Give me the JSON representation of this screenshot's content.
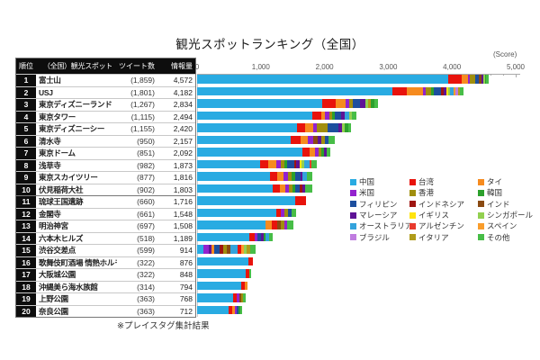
{
  "title": "観光スポットランキング（全国）",
  "footnote": "※プレイスタグ集計結果",
  "table": {
    "headers": [
      "順位",
      "（全国）観光スポット",
      "ツイート数",
      "情報量"
    ]
  },
  "chart_data": {
    "type": "bar",
    "orientation": "horizontal-stacked",
    "axis": {
      "label": "(Score)",
      "ticks": [
        "0",
        "1,000",
        "2,000",
        "3,000",
        "4,000",
        "5,000"
      ],
      "max": 5000,
      "minor_step": 200,
      "major_step": 1000
    },
    "legend_position": "right-middle",
    "legend": [
      {
        "name": "中国",
        "color": "#29ABE2"
      },
      {
        "name": "米国",
        "color": "#9322CE"
      },
      {
        "name": "フィリピン",
        "color": "#1D4F9E"
      },
      {
        "name": "マレーシア",
        "color": "#5E1396"
      },
      {
        "name": "オーストラリア",
        "color": "#33A3DC"
      },
      {
        "name": "ブラジル",
        "color": "#C07CE0"
      },
      {
        "name": "台湾",
        "color": "#E8130C"
      },
      {
        "name": "香港",
        "color": "#A08E0E"
      },
      {
        "name": "インドネシア",
        "color": "#9E1511"
      },
      {
        "name": "イギリス",
        "color": "#FFE40F"
      },
      {
        "name": "アルゼンチン",
        "color": "#E83A2E"
      },
      {
        "name": "イタリア",
        "color": "#B09C1A"
      },
      {
        "name": "タイ",
        "color": "#F68B1F"
      },
      {
        "name": "韓国",
        "color": "#2CA02C"
      },
      {
        "name": "インド",
        "color": "#8A4A12"
      },
      {
        "name": "シンガポール",
        "color": "#92D050"
      },
      {
        "name": "スペイン",
        "color": "#F99D2C"
      },
      {
        "name": "その他",
        "color": "#47BD47"
      }
    ],
    "rows": [
      {
        "rank": 1,
        "spot": "富士山",
        "tweets": "(1,859)",
        "score": 4572,
        "score_label": "4,572",
        "segments": [
          [
            "中国",
            3940
          ],
          [
            "台湾",
            210
          ],
          [
            "タイ",
            100
          ],
          [
            "米国",
            35
          ],
          [
            "香港",
            85
          ],
          [
            "フィリピン",
            45
          ],
          [
            "インド",
            45
          ],
          [
            "マレーシア",
            30
          ],
          [
            "シンガポール",
            25
          ],
          [
            "韓国",
            25
          ],
          [
            "その他",
            32
          ]
        ]
      },
      {
        "rank": 2,
        "spot": "USJ",
        "tweets": "(1,801)",
        "score": 4182,
        "score_label": "4,182",
        "segments": [
          [
            "中国",
            3065
          ],
          [
            "台湾",
            226
          ],
          [
            "タイ",
            254
          ],
          [
            "米国",
            40
          ],
          [
            "香港",
            90
          ],
          [
            "韓国",
            40
          ],
          [
            "フィリピン",
            120
          ],
          [
            "インドネシア",
            30
          ],
          [
            "マレーシア",
            50
          ],
          [
            "イギリス",
            20
          ],
          [
            "シンガポール",
            30
          ],
          [
            "オーストラリア",
            60
          ],
          [
            "スペイン",
            30
          ],
          [
            "ブラジル",
            40
          ],
          [
            "イタリア",
            30
          ],
          [
            "その他",
            57
          ]
        ]
      },
      {
        "rank": 3,
        "spot": "東京ディズニーランド",
        "tweets": "(1,267)",
        "score": 2834,
        "score_label": "2,834",
        "segments": [
          [
            "中国",
            1960
          ],
          [
            "台湾",
            212
          ],
          [
            "タイ",
            155
          ],
          [
            "米国",
            56
          ],
          [
            "香港",
            56
          ],
          [
            "フィリピン",
            120
          ],
          [
            "マレーシア",
            85
          ],
          [
            "シンガポール",
            40
          ],
          [
            "イタリア",
            44
          ],
          [
            "韓国",
            56
          ],
          [
            "その他",
            50
          ]
        ]
      },
      {
        "rank": 4,
        "spot": "東京タワー",
        "tweets": "(1,115)",
        "score": 2494,
        "score_label": "2,494",
        "segments": [
          [
            "中国",
            1810
          ],
          [
            "台湾",
            140
          ],
          [
            "タイ",
            54
          ],
          [
            "米国",
            70
          ],
          [
            "香港",
            50
          ],
          [
            "韓国",
            40
          ],
          [
            "フィリピン",
            100
          ],
          [
            "マレーシア",
            50
          ],
          [
            "オーストラリア",
            80
          ],
          [
            "シンガポール",
            40
          ],
          [
            "その他",
            60
          ]
        ]
      },
      {
        "rank": 5,
        "spot": "東京ディズニーシー",
        "tweets": "(1,155)",
        "score": 2420,
        "score_label": "2,420",
        "segments": [
          [
            "中国",
            1570
          ],
          [
            "台湾",
            130
          ],
          [
            "タイ",
            120
          ],
          [
            "米国",
            60
          ],
          [
            "香港",
            170
          ],
          [
            "フィリピン",
            170
          ],
          [
            "マレーシア",
            60
          ],
          [
            "シンガポール",
            40
          ],
          [
            "韓国",
            50
          ],
          [
            "その他",
            50
          ]
        ]
      },
      {
        "rank": 6,
        "spot": "清水寺",
        "tweets": "(950)",
        "score": 2157,
        "score_label": "2,157",
        "segments": [
          [
            "中国",
            1470
          ],
          [
            "台湾",
            150
          ],
          [
            "タイ",
            120
          ],
          [
            "米国",
            80
          ],
          [
            "インド",
            80
          ],
          [
            "マレーシア",
            50
          ],
          [
            "香港",
            60
          ],
          [
            "フィリピン",
            60
          ],
          [
            "その他",
            87
          ]
        ]
      },
      {
        "rank": 7,
        "spot": "東京ドーム",
        "tweets": "(851)",
        "score": 2092,
        "score_label": "2,092",
        "segments": [
          [
            "中国",
            1650
          ],
          [
            "台湾",
            110
          ],
          [
            "タイ",
            85
          ],
          [
            "米国",
            60
          ],
          [
            "香港",
            45
          ],
          [
            "韓国",
            40
          ],
          [
            "マレーシア",
            45
          ],
          [
            "その他",
            57
          ]
        ]
      },
      {
        "rank": 8,
        "spot": "浅草寺",
        "tweets": "(982)",
        "score": 1873,
        "score_label": "1,873",
        "segments": [
          [
            "中国",
            990
          ],
          [
            "台湾",
            130
          ],
          [
            "タイ",
            120
          ],
          [
            "米国",
            70
          ],
          [
            "香港",
            60
          ],
          [
            "韓国",
            50
          ],
          [
            "フィリピン",
            100
          ],
          [
            "インドネシア",
            40
          ],
          [
            "マレーシア",
            50
          ],
          [
            "イギリス",
            30
          ],
          [
            "シンガポール",
            40
          ],
          [
            "オーストラリア",
            80
          ],
          [
            "アルゼンチン",
            30
          ],
          [
            "その他",
            83
          ]
        ]
      },
      {
        "rank": 9,
        "spot": "東京スカイツリー",
        "tweets": "(877)",
        "score": 1816,
        "score_label": "1,816",
        "segments": [
          [
            "中国",
            1140
          ],
          [
            "台湾",
            120
          ],
          [
            "タイ",
            100
          ],
          [
            "米国",
            60
          ],
          [
            "香港",
            70
          ],
          [
            "韓国",
            50
          ],
          [
            "フィリピン",
            80
          ],
          [
            "マレーシア",
            40
          ],
          [
            "オーストラリア",
            60
          ],
          [
            "その他",
            96
          ]
        ]
      },
      {
        "rank": 10,
        "spot": "伏見稲荷大社",
        "tweets": "(902)",
        "score": 1803,
        "score_label": "1,803",
        "segments": [
          [
            "中国",
            1190
          ],
          [
            "台湾",
            110
          ],
          [
            "タイ",
            90
          ],
          [
            "米国",
            50
          ],
          [
            "香港",
            60
          ],
          [
            "韓国",
            40
          ],
          [
            "フィリピン",
            70
          ],
          [
            "インドネシア",
            40
          ],
          [
            "マレーシア",
            40
          ],
          [
            "その他",
            113
          ]
        ]
      },
      {
        "rank": 11,
        "spot": "琉球王国遺跡",
        "tweets": "(660)",
        "score": 1716,
        "score_label": "1,716",
        "segments": [
          [
            "中国",
            1540
          ],
          [
            "台湾",
            176
          ]
        ]
      },
      {
        "rank": 12,
        "spot": "金閣寺",
        "tweets": "(661)",
        "score": 1548,
        "score_label": "1,548",
        "segments": [
          [
            "中国",
            1240
          ],
          [
            "台湾",
            80
          ],
          [
            "米国",
            50
          ],
          [
            "香港",
            50
          ],
          [
            "フィリピン",
            60
          ],
          [
            "その他",
            68
          ]
        ]
      },
      {
        "rank": 13,
        "spot": "明治神宮",
        "tweets": "(697)",
        "score": 1508,
        "score_label": "1,508",
        "segments": [
          [
            "中国",
            1070
          ],
          [
            "タイ",
            100
          ],
          [
            "台湾",
            90
          ],
          [
            "インド",
            60
          ],
          [
            "香港",
            50
          ],
          [
            "米国",
            40
          ],
          [
            "その他",
            98
          ]
        ]
      },
      {
        "rank": 14,
        "spot": "六本木ヒルズ",
        "tweets": "(518)",
        "score": 1189,
        "score_label": "1,189",
        "segments": [
          [
            "中国",
            820
          ],
          [
            "台湾",
            80
          ],
          [
            "米国",
            50
          ],
          [
            "フィリピン",
            60
          ],
          [
            "マレーシア",
            30
          ],
          [
            "韓国",
            40
          ],
          [
            "オーストラリア",
            50
          ],
          [
            "その他",
            59
          ]
        ]
      },
      {
        "rank": 15,
        "spot": "渋谷交差点",
        "tweets": "(599)",
        "score": 914,
        "score_label": "914",
        "segments": [
          [
            "中国",
            100
          ],
          [
            "米国",
            80
          ],
          [
            "マレーシア",
            50
          ],
          [
            "タイ",
            40
          ],
          [
            "フィリピン",
            90
          ],
          [
            "インドネシア",
            50
          ],
          [
            "香港",
            60
          ],
          [
            "インド",
            50
          ],
          [
            "オーストラリア",
            120
          ],
          [
            "台湾",
            60
          ],
          [
            "スペイン",
            40
          ],
          [
            "シンガポール",
            40
          ],
          [
            "イタリア",
            50
          ],
          [
            "その他",
            84
          ]
        ]
      },
      {
        "rank": 16,
        "spot": "歌舞伎町酒場 情熱ホルモン",
        "tweets": "(322)",
        "score": 876,
        "score_label": "876",
        "segments": [
          [
            "中国",
            800
          ],
          [
            "台湾",
            76
          ]
        ]
      },
      {
        "rank": 17,
        "spot": "大阪城公園",
        "tweets": "(322)",
        "score": 848,
        "score_label": "848",
        "segments": [
          [
            "中国",
            760
          ],
          [
            "台湾",
            60
          ],
          [
            "その他",
            28
          ]
        ]
      },
      {
        "rank": 18,
        "spot": "沖縄美ら海水族館",
        "tweets": "(314)",
        "score": 794,
        "score_label": "794",
        "segments": [
          [
            "中国",
            690
          ],
          [
            "台湾",
            60
          ],
          [
            "タイ",
            44
          ]
        ]
      },
      {
        "rank": 19,
        "spot": "上野公園",
        "tweets": "(363)",
        "score": 768,
        "score_label": "768",
        "segments": [
          [
            "中国",
            560
          ],
          [
            "台湾",
            60
          ],
          [
            "米国",
            40
          ],
          [
            "インド",
            30
          ],
          [
            "香港",
            30
          ],
          [
            "その他",
            48
          ]
        ]
      },
      {
        "rank": 20,
        "spot": "奈良公園",
        "tweets": "(363)",
        "score": 712,
        "score_label": "712",
        "segments": [
          [
            "中国",
            500
          ],
          [
            "台湾",
            50
          ],
          [
            "タイ",
            40
          ],
          [
            "米国",
            30
          ],
          [
            "フィリピン",
            30
          ],
          [
            "韓国",
            30
          ],
          [
            "その他",
            32
          ]
        ]
      }
    ]
  }
}
